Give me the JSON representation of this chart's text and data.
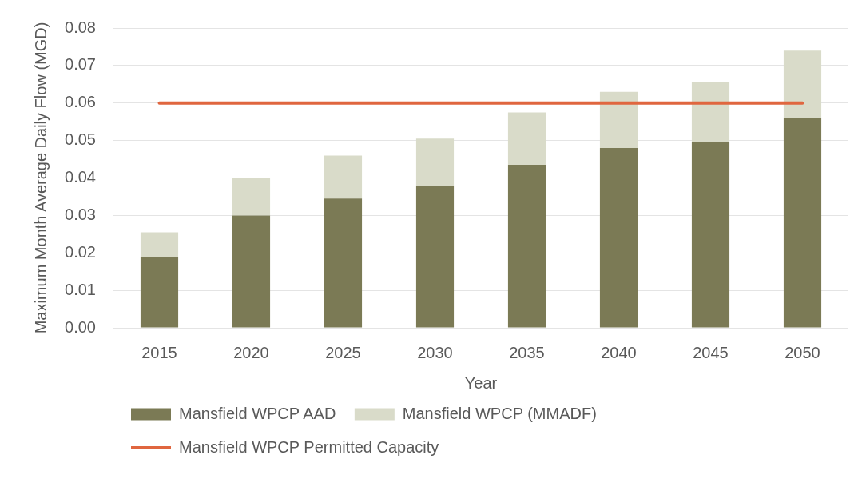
{
  "chart_data": {
    "type": "bar",
    "stacked": true,
    "categories": [
      "2015",
      "2020",
      "2025",
      "2030",
      "2035",
      "2040",
      "2045",
      "2050"
    ],
    "xlabel": "Year",
    "ylabel": "Maximum Month Average Daily Flow (MGD)",
    "ylim": [
      0,
      0.08
    ],
    "yticks": [
      {
        "value": 0,
        "label": "0.00"
      },
      0.01,
      0.02,
      0.03,
      0.04,
      0.05,
      0.06,
      0.07,
      0.08
    ],
    "grid": "y",
    "legend": "bottom left",
    "series": [
      {
        "name": "Mansfield WPCP AAD",
        "color": "#7b7a55",
        "values": [
          0.019,
          0.03,
          0.0345,
          0.038,
          0.0435,
          0.048,
          0.0495,
          0.056
        ]
      },
      {
        "name": "Mansfield WPCP (MMADF)",
        "color": "#d9dbc9",
        "values": [
          0.0065,
          0.01,
          0.0115,
          0.0125,
          0.014,
          0.015,
          0.016,
          0.018
        ]
      },
      {
        "name": "Mansfield WPCP Permitted Capacity",
        "type": "line",
        "marker": "none",
        "color": "#e0663f",
        "values": [
          0.06,
          0.06,
          0.06,
          0.06,
          0.06,
          0.06,
          0.06,
          0.06
        ]
      }
    ]
  }
}
